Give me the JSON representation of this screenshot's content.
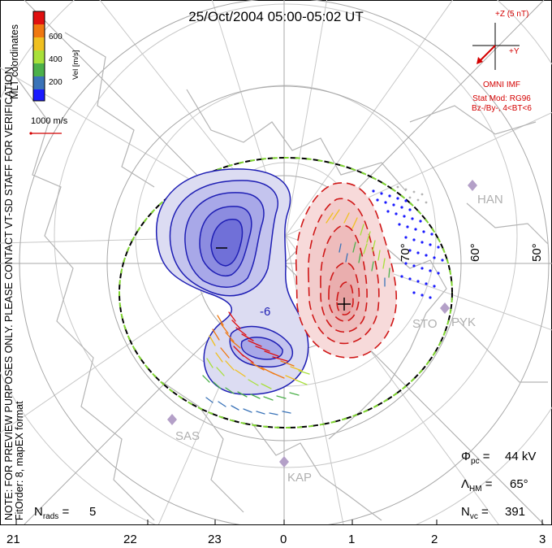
{
  "title": "25/Oct/2004 05:00-05:02 UT",
  "side_labels": {
    "coordinates": "MLT coordinates",
    "note": "NOTE: FOR PREVIEW PURPOSES ONLY. PLEASE CONTACT VT-SD STAFF FOR VERIFICATION.",
    "fit": "FitOrder: 8, mapEX format"
  },
  "colorbar": {
    "label": "Vel [m/s]",
    "ticks": [
      "200",
      "400",
      "600"
    ],
    "colors": [
      "#1a1aff",
      "#3a73b8",
      "#4cb04a",
      "#a8e03a",
      "#f0c020",
      "#f07810",
      "#e01010"
    ]
  },
  "scale_vector": {
    "label": "1000 m/s"
  },
  "imf": {
    "z_label": "+Z (5 nT)",
    "y_label": "+Y",
    "source": "OMNI IMF",
    "model_line1": "Stat Mod: RG96",
    "model_line2": "Bz-/By-, 4<BT<6"
  },
  "latitude_labels": [
    "70°",
    "60°",
    "50°"
  ],
  "mlt_labels": [
    "21",
    "22",
    "23",
    "0",
    "1",
    "2",
    "3"
  ],
  "contour_label": "-6",
  "sites": [
    "HAN",
    "STO",
    "PYK",
    "SAS",
    "KAP"
  ],
  "stats": {
    "phi_pc": "44 kV",
    "lambda_hm": "65°",
    "n_vc": "391",
    "n_rads": "5"
  },
  "colors": {
    "negative_cell": "#1e1eb4",
    "positive_cell": "#d01818",
    "boundary": "#000000",
    "annotation": "#d40000"
  }
}
